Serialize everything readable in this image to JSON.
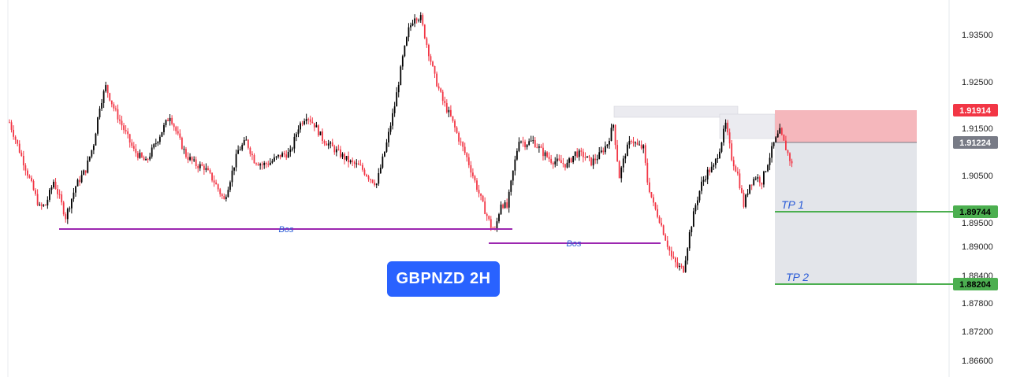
{
  "badge": {
    "label": "GBPNZD 2H"
  },
  "price_axis": {
    "ticks": [
      "1.93500",
      "1.92500",
      "1.91500",
      "1.90500",
      "1.89500",
      "1.89000",
      "1.88400",
      "1.87800",
      "1.87200",
      "1.86600"
    ]
  },
  "price_tags": [
    {
      "label": "1.91914",
      "color": "#f23645"
    },
    {
      "label": "1.91224",
      "color": "#787b86"
    },
    {
      "label": "1.89744",
      "color": "#4caf50"
    },
    {
      "label": "1.88204",
      "color": "#4caf50"
    }
  ],
  "levels": [
    {
      "label": "Bos",
      "color": "#9c27b0"
    },
    {
      "label": "Bos",
      "color": "#9c27b0"
    },
    {
      "label": "TP 1",
      "color": "#4caf50"
    },
    {
      "label": "TP 2",
      "color": "#4caf50"
    }
  ],
  "colors": {
    "bull": "#000000",
    "bear": "#f23645",
    "background": "#ffffff",
    "stop_zone": "#f5b7bc",
    "target_zone": "#e3e5ea",
    "supply_zone": "#ebebf0"
  },
  "chart_data": {
    "type": "candlestick",
    "symbol": "GBPNZD",
    "timeframe": "2H",
    "ylim": [
      1.8632,
      1.94
    ],
    "grid": false,
    "entry": 1.91224,
    "stop": 1.91914,
    "targets": [
      {
        "name": "TP 1",
        "value": 1.89744
      },
      {
        "name": "TP 2",
        "value": 1.88204
      }
    ],
    "bos_levels": [
      {
        "label": "Bos",
        "value": 1.8931
      },
      {
        "label": "Bos",
        "value": 1.8905
      }
    ],
    "path": [
      [
        0,
        1.9165
      ],
      [
        5,
        1.9105
      ],
      [
        10,
        1.9045
      ],
      [
        15,
        1.8985
      ],
      [
        18,
        1.899
      ],
      [
        22,
        1.904
      ],
      [
        25,
        1.9005
      ],
      [
        28,
        1.8965
      ],
      [
        33,
        1.903
      ],
      [
        38,
        1.9065
      ],
      [
        42,
        1.912
      ],
      [
        45,
        1.92
      ],
      [
        48,
        1.924
      ],
      [
        52,
        1.9195
      ],
      [
        57,
        1.915
      ],
      [
        62,
        1.9105
      ],
      [
        68,
        1.908
      ],
      [
        74,
        1.913
      ],
      [
        80,
        1.918
      ],
      [
        84,
        1.9135
      ],
      [
        88,
        1.9095
      ],
      [
        93,
        1.9075
      ],
      [
        97,
        1.907
      ],
      [
        102,
        1.904
      ],
      [
        107,
        1.9
      ],
      [
        111,
        1.906
      ],
      [
        114,
        1.9105
      ],
      [
        118,
        1.9125
      ],
      [
        122,
        1.9085
      ],
      [
        126,
        1.9075
      ],
      [
        130,
        1.908
      ],
      [
        135,
        1.9095
      ],
      [
        140,
        1.91
      ],
      [
        144,
        1.9155
      ],
      [
        148,
        1.918
      ],
      [
        152,
        1.916
      ],
      [
        156,
        1.913
      ],
      [
        160,
        1.9115
      ],
      [
        164,
        1.91
      ],
      [
        170,
        1.908
      ],
      [
        175,
        1.907
      ],
      [
        179,
        1.905
      ],
      [
        183,
        1.9035
      ],
      [
        188,
        1.912
      ],
      [
        192,
        1.92
      ],
      [
        196,
        1.93
      ],
      [
        199,
        1.936
      ],
      [
        202,
        1.939
      ],
      [
        205,
        1.9385
      ],
      [
        208,
        1.933
      ],
      [
        212,
        1.926
      ],
      [
        216,
        1.921
      ],
      [
        220,
        1.9175
      ],
      [
        224,
        1.913
      ],
      [
        228,
        1.909
      ],
      [
        232,
        1.904
      ],
      [
        236,
        1.899
      ],
      [
        240,
        1.8945
      ],
      [
        242,
        1.8935
      ],
      [
        245,
        1.8995
      ],
      [
        248,
        1.8985
      ],
      [
        251,
        1.906
      ],
      [
        254,
        1.913
      ],
      [
        257,
        1.912
      ],
      [
        261,
        1.9125
      ],
      [
        266,
        1.91
      ],
      [
        270,
        1.9085
      ],
      [
        274,
        1.908
      ],
      [
        278,
        1.9075
      ],
      [
        282,
        1.91
      ],
      [
        286,
        1.9095
      ],
      [
        290,
        1.908
      ],
      [
        294,
        1.9095
      ],
      [
        298,
        1.912
      ],
      [
        301,
        1.916
      ],
      [
        304,
        1.905
      ],
      [
        307,
        1.91
      ],
      [
        310,
        1.913
      ],
      [
        313,
        1.9115
      ],
      [
        316,
        1.911
      ],
      [
        318,
        1.904
      ],
      [
        321,
        1.899
      ],
      [
        324,
        1.896
      ],
      [
        327,
        1.892
      ],
      [
        330,
        1.888
      ],
      [
        333,
        1.886
      ],
      [
        336,
        1.8855
      ],
      [
        339,
        1.893
      ],
      [
        342,
        1.899
      ],
      [
        345,
        1.9035
      ],
      [
        348,
        1.906
      ],
      [
        351,
        1.907
      ],
      [
        354,
        1.911
      ],
      [
        357,
        1.916
      ],
      [
        360,
        1.909
      ],
      [
        363,
        1.9055
      ],
      [
        366,
        1.899
      ],
      [
        369,
        1.9035
      ],
      [
        372,
        1.905
      ],
      [
        375,
        1.904
      ],
      [
        378,
        1.908
      ],
      [
        381,
        1.912
      ],
      [
        384,
        1.9145
      ],
      [
        387,
        1.911
      ],
      [
        390,
        1.9075
      ]
    ]
  }
}
